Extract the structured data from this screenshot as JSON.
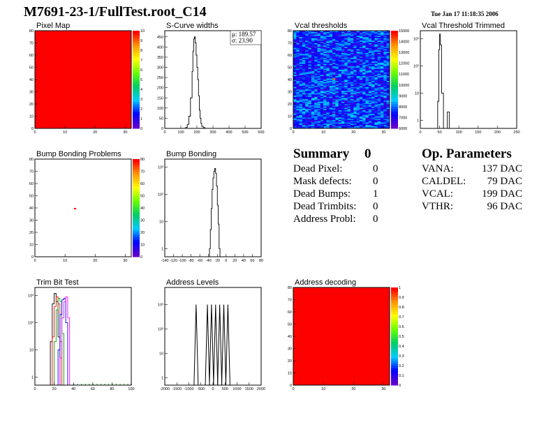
{
  "header": {
    "title": "M7691-23-1/FullTest.root_C14",
    "date": "Tue Jan 17 11:18:35 2006"
  },
  "summary": {
    "heading": "Summary",
    "heading_value": "0",
    "rows": [
      {
        "label": "Dead Pixel:",
        "value": "0"
      },
      {
        "label": "Mask defects:",
        "value": "0"
      },
      {
        "label": "Dead Bumps:",
        "value": "1"
      },
      {
        "label": "Dead Trimbits:",
        "value": "0"
      },
      {
        "label": "Address Probl:",
        "value": "0"
      }
    ]
  },
  "op_parameters": {
    "heading": "Op. Parameters",
    "rows": [
      {
        "label": "VANA:",
        "value": "137 DAC"
      },
      {
        "label": "CALDEL:",
        "value": "79 DAC"
      },
      {
        "label": "VCAL:",
        "value": "199 DAC"
      },
      {
        "label": "VTHR:",
        "value": "96 DAC"
      }
    ]
  },
  "chart_data": [
    {
      "id": "pixel-map",
      "type": "heatmap",
      "title": "Pixel Map",
      "xlim": [
        0,
        32
      ],
      "ylim": [
        0,
        80
      ],
      "x_ticks": [
        "0",
        "10",
        "20",
        "30"
      ],
      "y_ticks": [
        "0",
        "10",
        "20",
        "30",
        "40",
        "50",
        "60",
        "70",
        "80"
      ],
      "z_ticks": [
        "0",
        "1",
        "2",
        "3",
        "4",
        "5",
        "6",
        "7",
        "8",
        "9",
        "10"
      ],
      "fill_value": 10,
      "fill_color": "#ff0000"
    },
    {
      "id": "scurve-widths",
      "type": "line",
      "title": "S-Curve widths",
      "xlim": [
        0,
        600
      ],
      "ylim": [
        0,
        480
      ],
      "x_ticks": [
        "0",
        "100",
        "200",
        "300",
        "400",
        "500",
        "600"
      ],
      "y_ticks": [
        "0",
        "50",
        "100",
        "150",
        "200",
        "250",
        "300",
        "350",
        "400",
        "450"
      ],
      "stats": {
        "mean": "μ: 189.57",
        "sigma": "σ: 23.90"
      },
      "x": [
        120,
        130,
        140,
        150,
        160,
        170,
        175,
        180,
        185,
        190,
        195,
        200,
        205,
        210,
        215,
        220,
        225,
        230,
        240,
        250,
        260,
        270
      ],
      "y": [
        0,
        5,
        20,
        60,
        150,
        280,
        380,
        440,
        450,
        420,
        360,
        300,
        240,
        160,
        90,
        50,
        25,
        10,
        4,
        0,
        0,
        0
      ]
    },
    {
      "id": "vcal-thresholds",
      "type": "heatmap",
      "title": "Vcal thresholds",
      "xlim": [
        0,
        32
      ],
      "ylim": [
        0,
        80
      ],
      "x_ticks": [
        "0",
        "10",
        "20",
        "30"
      ],
      "y_ticks": [
        "0",
        "10",
        "20",
        "30",
        "40",
        "50",
        "60",
        "70",
        "80"
      ],
      "z_ticks": [
        "6000",
        "7000",
        "8000",
        "9000",
        "10000",
        "11000",
        "12000",
        "13000",
        "14000",
        "15000"
      ]
    },
    {
      "id": "vcal-threshold-trimmed",
      "type": "line",
      "title": "Vcal Threshold Trimmed",
      "log_y": true,
      "xlim": [
        0,
        250
      ],
      "ylim": [
        0.5,
        2000
      ],
      "x_ticks": [
        "0",
        "50",
        "100",
        "150",
        "200",
        "250"
      ],
      "y_ticks": [
        "1",
        "10",
        "10²",
        "10³"
      ],
      "x": [
        30,
        35,
        40,
        45,
        48,
        50,
        52,
        55,
        60,
        65,
        70,
        72,
        75,
        80
      ],
      "y": [
        0.5,
        0.5,
        0.5,
        5,
        400,
        1500,
        600,
        10,
        0.5,
        0.5,
        2,
        2,
        0.5,
        0.5
      ]
    },
    {
      "id": "bump-bonding-problems",
      "type": "heatmap",
      "title": "Bump Bonding Problems",
      "xlim": [
        0,
        32
      ],
      "ylim": [
        0,
        80
      ],
      "x_ticks": [
        "0",
        "10",
        "20",
        "30"
      ],
      "y_ticks": [
        "0",
        "10",
        "20",
        "30",
        "40",
        "50",
        "60",
        "70",
        "80"
      ],
      "z_ticks": [
        "0",
        "10",
        "20",
        "30",
        "40",
        "50",
        "60",
        "70",
        "80"
      ],
      "hot_pixel": {
        "x": 13,
        "y": 40
      }
    },
    {
      "id": "bump-bonding",
      "type": "line",
      "title": "Bump Bonding",
      "log_y": true,
      "xlim": [
        -140,
        80
      ],
      "ylim": [
        0.5,
        2000
      ],
      "x_ticks": [
        "-140",
        "-120",
        "-100",
        "-80",
        "-60",
        "-40",
        "-20",
        "0",
        "20",
        "40",
        "60",
        "80"
      ],
      "y_ticks": [
        "1",
        "10",
        "10²",
        "10³"
      ],
      "x": [
        -40,
        -38,
        -36,
        -34,
        -32,
        -30,
        -28,
        -26,
        -24,
        -22,
        -20,
        -18,
        -16,
        -14
      ],
      "y": [
        0.5,
        1,
        5,
        30,
        150,
        400,
        700,
        900,
        600,
        200,
        40,
        8,
        1,
        0.5
      ]
    },
    {
      "id": "trim-bit-test",
      "type": "line",
      "title": "Trim Bit Test",
      "log_y": true,
      "xlim": [
        0,
        100
      ],
      "ylim": [
        0.5,
        2000
      ],
      "x_ticks": [
        "0",
        "20",
        "40",
        "60",
        "80",
        "100"
      ],
      "y_ticks": [
        "1",
        "10",
        "10²",
        "10³"
      ],
      "series": [
        {
          "color": "#000000",
          "x": [
            14,
            16,
            18,
            20,
            22,
            24,
            26
          ],
          "y": [
            0.5,
            20,
            500,
            1200,
            600,
            30,
            0.5
          ]
        },
        {
          "color": "#ff0000",
          "x": [
            16,
            18,
            20,
            22,
            24,
            26,
            28
          ],
          "y": [
            0.5,
            30,
            400,
            900,
            500,
            20,
            0.5
          ]
        },
        {
          "color": "#00a000",
          "x": [
            18,
            20,
            22,
            24,
            26,
            28,
            30
          ],
          "y": [
            0.5,
            20,
            300,
            800,
            600,
            40,
            0.5
          ]
        },
        {
          "color": "#0000ff",
          "x": [
            22,
            24,
            26,
            28,
            30,
            32,
            34
          ],
          "y": [
            0.5,
            10,
            200,
            700,
            800,
            100,
            0.5
          ]
        },
        {
          "color": "#ff00ff",
          "x": [
            24,
            26,
            28,
            30,
            32,
            34,
            36
          ],
          "y": [
            0.5,
            5,
            150,
            600,
            900,
            150,
            0.5
          ]
        }
      ]
    },
    {
      "id": "address-levels",
      "type": "line",
      "title": "Address Levels",
      "log_y": true,
      "xlim": [
        -2000,
        2000
      ],
      "ylim": [
        0.5,
        5000
      ],
      "x_ticks": [
        "-2000",
        "-1500",
        "-1000",
        "-500",
        "0",
        "500",
        "1000",
        "1500",
        "2000"
      ],
      "y_ticks": [
        "1",
        "10",
        "10²",
        "10³"
      ],
      "peaks_x": [
        -700,
        -230,
        -60,
        110,
        280,
        450,
        620
      ],
      "peak_height": 1000
    },
    {
      "id": "address-decoding",
      "type": "heatmap",
      "title": "Address decoding",
      "xlim": [
        0,
        32
      ],
      "ylim": [
        0,
        80
      ],
      "x_ticks": [
        "0",
        "10",
        "20",
        "30"
      ],
      "y_ticks": [
        "0",
        "10",
        "20",
        "30",
        "40",
        "50",
        "60",
        "70",
        "80"
      ],
      "z_ticks": [
        "0",
        "0.1",
        "0.2",
        "0.3",
        "0.4",
        "0.5",
        "0.6",
        "0.7",
        "0.8",
        "0.9",
        "1"
      ],
      "fill_value": 1,
      "fill_color": "#ff0000"
    }
  ]
}
